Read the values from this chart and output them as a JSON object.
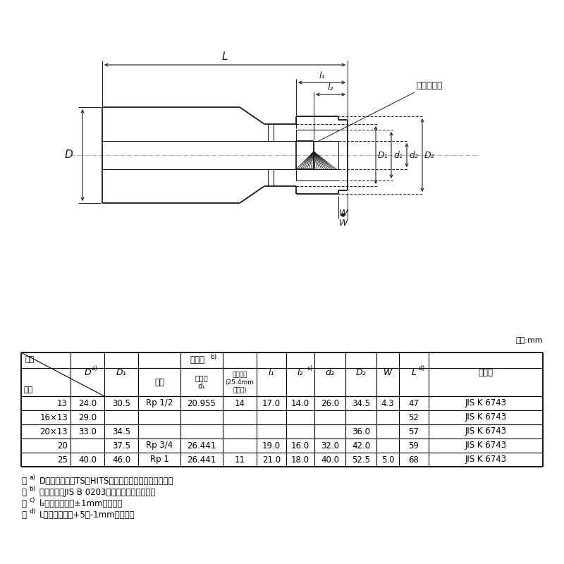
{
  "unit_label": "単位:mm",
  "table_data": [
    [
      "13",
      "24.0",
      "30.5",
      "Rp 1/2",
      "20.955",
      "14",
      "17.0",
      "14.0",
      "26.0",
      "34.5",
      "4.3",
      "47",
      "JIS K 6743"
    ],
    [
      "16×13",
      "29.0",
      "",
      "",
      "",
      "",
      "",
      "",
      "",
      "",
      "",
      "52",
      "JIS K 6743"
    ],
    [
      "20×13",
      "33.0",
      "34.5",
      "",
      "",
      "",
      "",
      "",
      "",
      "36.0",
      "",
      "57",
      "JIS K 6743"
    ],
    [
      "20",
      "",
      "37.5",
      "Rp 3/4",
      "26.441",
      "",
      "19.0",
      "16.0",
      "32.0",
      "42.0",
      "",
      "59",
      "JIS K 6743"
    ],
    [
      "25",
      "40.0",
      "46.0",
      "Rp 1",
      "26.441",
      "11",
      "21.0",
      "18.0",
      "40.0",
      "52.5",
      "5.0",
      "68",
      "JIS K 6743"
    ]
  ],
  "notes": [
    [
      "a)",
      "Dの許容差は、TS・HITS継手受口共通寸法図による。"
    ],
    [
      "b)",
      "ねじ部は、JIS B 0203の平行めねじとする。"
    ],
    [
      "c)",
      "l₂の許容差は、±1mmとする。"
    ],
    [
      "d)",
      "Lの許容差は、+5／-1mmとする。"
    ]
  ],
  "bg_color": "#ffffff",
  "line_color": "#1a1a1a",
  "dim_color": "#1a1a1a"
}
